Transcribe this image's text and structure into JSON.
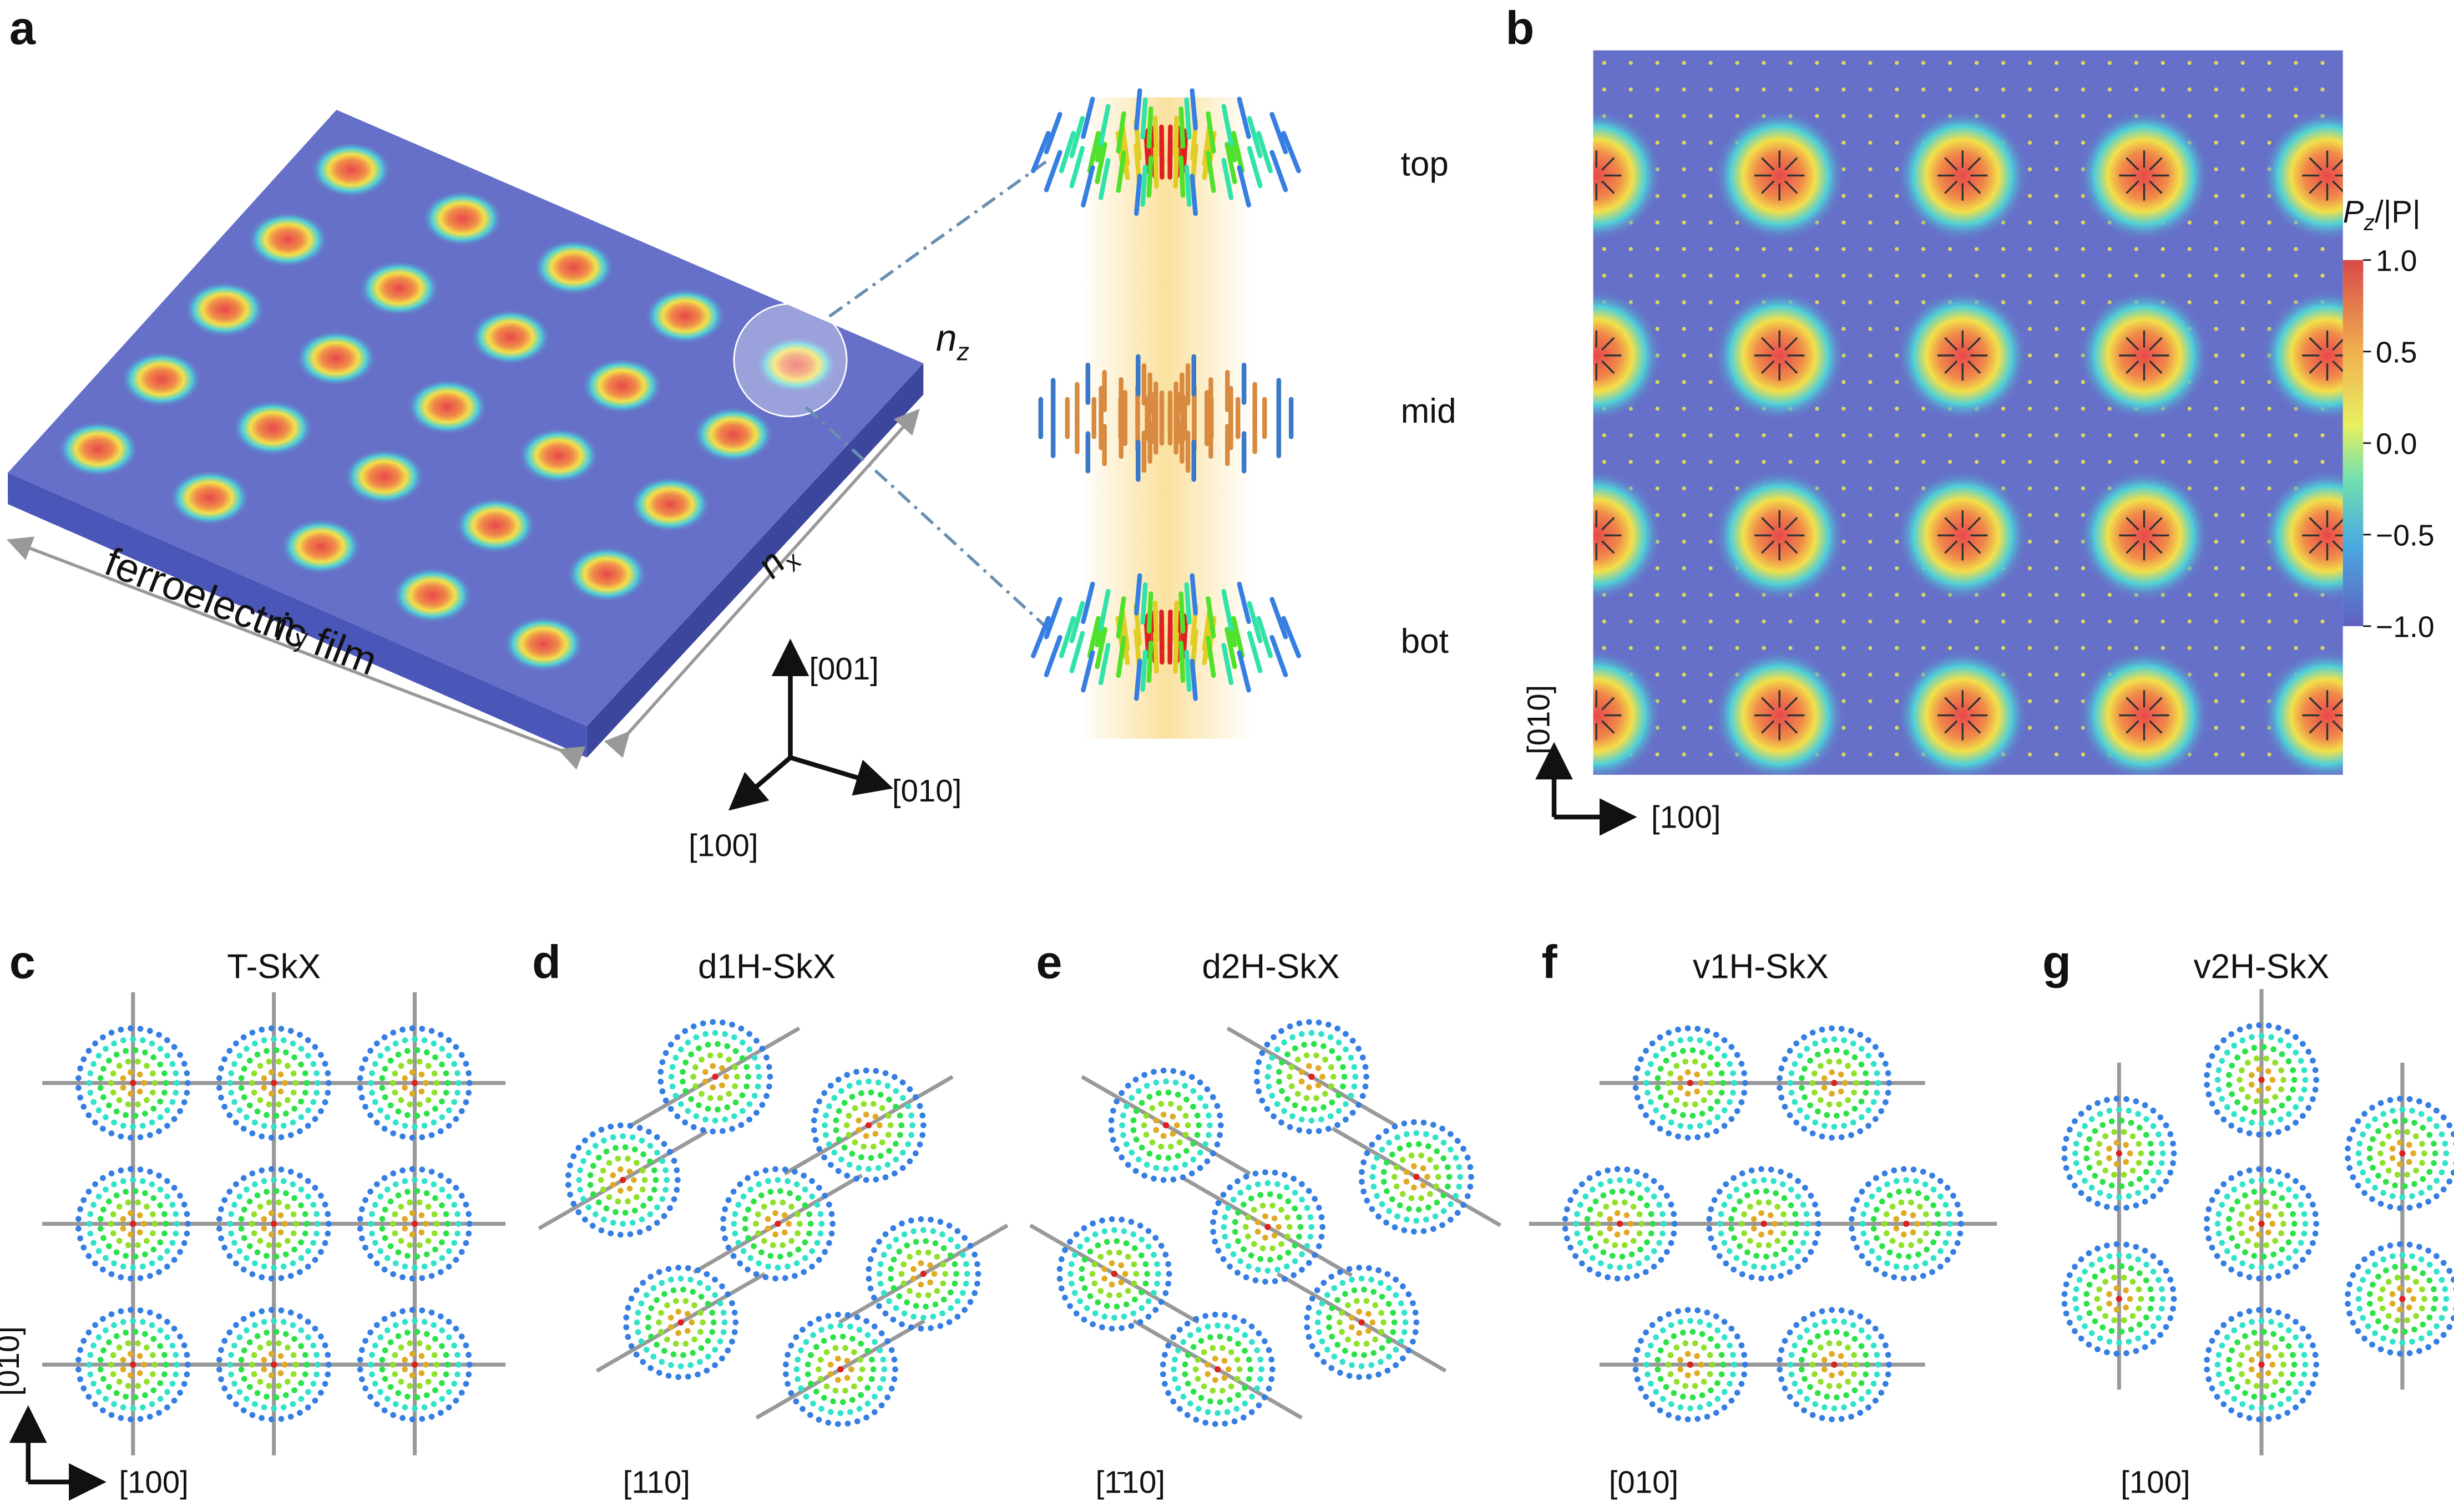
{
  "panel_a": {
    "letter": "a",
    "film_label": "ferroelectric film",
    "n_y": {
      "base": "n",
      "sub": "y"
    },
    "n_x": {
      "base": "n",
      "sub": "x"
    },
    "n_z": {
      "base": "n",
      "sub": "z"
    },
    "layers": [
      "top",
      "mid",
      "bot"
    ],
    "axes": [
      "[001]",
      "[010]",
      "[100]"
    ]
  },
  "panel_b": {
    "letter": "b",
    "colorbar": {
      "title": {
        "base": "P",
        "sub": "z",
        "tail": "/|P|"
      },
      "lim": [
        -1,
        1
      ],
      "ticks": [
        {
          "value": 1,
          "label": "1.0"
        },
        {
          "value": 0.5,
          "label": "0.5"
        },
        {
          "value": 0,
          "label": "0.0"
        },
        {
          "value": -0.5,
          "label": "−0.5"
        },
        {
          "value": -1,
          "label": "−1.0"
        }
      ]
    },
    "axes": [
      "[010]",
      "[100]"
    ]
  },
  "lattices": [
    {
      "letter": "c",
      "title": "T-SkX",
      "axes": [
        "[010]",
        "[100]"
      ]
    },
    {
      "letter": "d",
      "title": "d1H-SkX",
      "axes": [
        "[110]"
      ]
    },
    {
      "letter": "e",
      "title": "d2H-SkX",
      "axes": [
        "[1̄10]"
      ]
    },
    {
      "letter": "f",
      "title": "v1H-SkX",
      "axes": [
        "[010]"
      ]
    },
    {
      "letter": "g",
      "title": "v2H-SkX",
      "axes": [
        "[100]"
      ]
    }
  ]
}
